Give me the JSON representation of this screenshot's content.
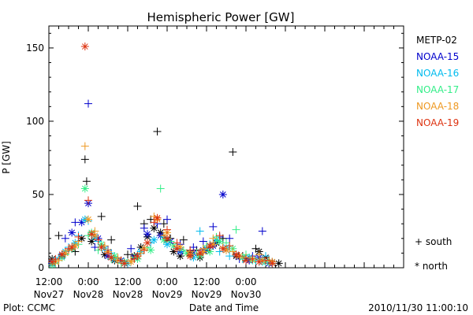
{
  "chart_data": {
    "type": "scatter",
    "title": "Hemispheric Power [GW]",
    "ylabel": "P [GW]",
    "xlabel": "Date and Time",
    "ylim": [
      0,
      165
    ],
    "xlim": [
      0,
      108
    ],
    "yticks": [
      0,
      50,
      100,
      150
    ],
    "xticks": [
      {
        "x": 0,
        "time": "12:00",
        "date": "Nov27"
      },
      {
        "x": 12,
        "time": "0:00",
        "date": "Nov28"
      },
      {
        "x": 24,
        "time": "12:00",
        "date": "Nov28"
      },
      {
        "x": 36,
        "time": "0:00",
        "date": "Nov29"
      },
      {
        "x": 48,
        "time": "12:00",
        "date": "Nov29"
      },
      {
        "x": 60,
        "time": "0:00",
        "date": "Nov30"
      }
    ],
    "grid": false,
    "legend_position": "right",
    "series": [
      {
        "name": "METP-02",
        "color": "#000000",
        "south": [
          [
            3,
            22
          ],
          [
            8,
            11
          ],
          [
            11,
            74
          ],
          [
            11.5,
            59
          ],
          [
            16,
            35
          ],
          [
            19,
            19
          ],
          [
            24,
            9
          ],
          [
            27,
            42
          ],
          [
            29,
            30
          ],
          [
            31,
            33
          ],
          [
            33,
            93
          ],
          [
            35,
            30
          ],
          [
            37,
            20
          ],
          [
            41,
            19
          ],
          [
            45,
            12
          ],
          [
            49,
            14
          ],
          [
            53,
            20
          ],
          [
            56,
            79
          ],
          [
            59,
            8
          ],
          [
            63,
            13
          ],
          [
            67,
            5
          ]
        ],
        "north": [
          [
            1,
            6
          ],
          [
            4,
            9
          ],
          [
            7,
            13
          ],
          [
            10,
            20
          ],
          [
            13,
            18
          ],
          [
            17,
            9
          ],
          [
            20,
            5
          ],
          [
            23,
            3
          ],
          [
            26,
            8
          ],
          [
            28,
            14
          ],
          [
            30,
            21
          ],
          [
            32,
            27
          ],
          [
            34,
            24
          ],
          [
            36,
            19
          ],
          [
            38,
            11
          ],
          [
            40,
            8
          ],
          [
            43,
            10
          ],
          [
            46,
            7
          ],
          [
            48,
            12
          ],
          [
            51,
            17
          ],
          [
            54,
            12
          ],
          [
            57,
            8
          ],
          [
            60,
            6
          ],
          [
            64,
            11
          ],
          [
            66,
            7
          ],
          [
            68,
            4
          ],
          [
            70,
            3
          ]
        ]
      },
      {
        "name": "NOAA-15",
        "color": "#0000cc",
        "south": [
          [
            2,
            4
          ],
          [
            5,
            20
          ],
          [
            8,
            31
          ],
          [
            12,
            112
          ],
          [
            14,
            14
          ],
          [
            18,
            12
          ],
          [
            21,
            6
          ],
          [
            25,
            13
          ],
          [
            29,
            27
          ],
          [
            33,
            30
          ],
          [
            36,
            33
          ],
          [
            40,
            16
          ],
          [
            44,
            14
          ],
          [
            47,
            18
          ],
          [
            50,
            28
          ],
          [
            52,
            21
          ],
          [
            55,
            20
          ],
          [
            58,
            6
          ],
          [
            62,
            8
          ],
          [
            65,
            25
          ]
        ],
        "north": [
          [
            1,
            3
          ],
          [
            4,
            8
          ],
          [
            7,
            24
          ],
          [
            10,
            31
          ],
          [
            12,
            44
          ],
          [
            15,
            20
          ],
          [
            18,
            8
          ],
          [
            22,
            5
          ],
          [
            26,
            7
          ],
          [
            30,
            23
          ],
          [
            34,
            22
          ],
          [
            37,
            18
          ],
          [
            40,
            11
          ],
          [
            44,
            10
          ],
          [
            47,
            12
          ],
          [
            50,
            15
          ],
          [
            53,
            50
          ],
          [
            57,
            9
          ],
          [
            61,
            5
          ],
          [
            64,
            7
          ],
          [
            67,
            3
          ]
        ]
      },
      {
        "name": "NOAA-16",
        "color": "#00bbee",
        "south": [
          [
            3,
            7
          ],
          [
            6,
            14
          ],
          [
            9,
            22
          ],
          [
            12,
            32
          ],
          [
            15,
            18
          ],
          [
            19,
            10
          ],
          [
            23,
            4
          ],
          [
            27,
            9
          ],
          [
            31,
            17
          ],
          [
            35,
            21
          ],
          [
            39,
            14
          ],
          [
            43,
            9
          ],
          [
            46,
            25
          ],
          [
            49,
            16
          ],
          [
            52,
            11
          ],
          [
            55,
            8
          ],
          [
            59,
            6
          ],
          [
            63,
            5
          ],
          [
            66,
            8
          ]
        ],
        "north": [
          [
            2,
            5
          ],
          [
            5,
            11
          ],
          [
            8,
            17
          ],
          [
            11,
            33
          ],
          [
            14,
            21
          ],
          [
            17,
            13
          ],
          [
            20,
            6
          ],
          [
            24,
            3
          ],
          [
            28,
            11
          ],
          [
            32,
            19
          ],
          [
            36,
            16
          ],
          [
            40,
            12
          ],
          [
            44,
            7
          ],
          [
            48,
            13
          ],
          [
            51,
            19
          ],
          [
            54,
            14
          ],
          [
            57,
            9
          ],
          [
            61,
            7
          ],
          [
            65,
            4
          ],
          [
            68,
            3
          ]
        ]
      },
      {
        "name": "NOAA-17",
        "color": "#33ee88",
        "south": [
          [
            2,
            3
          ],
          [
            5,
            9
          ],
          [
            9,
            16
          ],
          [
            12,
            22
          ],
          [
            15,
            12
          ],
          [
            19,
            6
          ],
          [
            22,
            3
          ],
          [
            26,
            7
          ],
          [
            30,
            14
          ],
          [
            34,
            54
          ],
          [
            37,
            18
          ],
          [
            41,
            12
          ],
          [
            45,
            10
          ],
          [
            48,
            15
          ],
          [
            51,
            21
          ],
          [
            54,
            17
          ],
          [
            57,
            26
          ],
          [
            60,
            9
          ],
          [
            64,
            6
          ],
          [
            67,
            4
          ]
        ],
        "north": [
          [
            1,
            2
          ],
          [
            4,
            7
          ],
          [
            7,
            13
          ],
          [
            11,
            54
          ],
          [
            13,
            24
          ],
          [
            16,
            16
          ],
          [
            20,
            8
          ],
          [
            23,
            4
          ],
          [
            27,
            6
          ],
          [
            31,
            12
          ],
          [
            35,
            19
          ],
          [
            38,
            15
          ],
          [
            42,
            10
          ],
          [
            46,
            8
          ],
          [
            49,
            11
          ],
          [
            52,
            18
          ],
          [
            56,
            13
          ],
          [
            59,
            7
          ],
          [
            62,
            5
          ],
          [
            66,
            4
          ]
        ]
      },
      {
        "name": "NOAA-18",
        "color": "#ee9922",
        "south": [
          [
            3,
            5
          ],
          [
            6,
            12
          ],
          [
            9,
            18
          ],
          [
            11,
            83
          ],
          [
            14,
            25
          ],
          [
            17,
            15
          ],
          [
            21,
            7
          ],
          [
            25,
            5
          ],
          [
            28,
            10
          ],
          [
            32,
            35
          ],
          [
            35,
            22
          ],
          [
            39,
            15
          ],
          [
            43,
            11
          ],
          [
            47,
            13
          ],
          [
            50,
            20
          ],
          [
            53,
            14
          ],
          [
            56,
            11
          ],
          [
            60,
            7
          ],
          [
            64,
            9
          ],
          [
            67,
            5
          ]
        ],
        "north": [
          [
            2,
            4
          ],
          [
            5,
            10
          ],
          [
            8,
            15
          ],
          [
            12,
            33
          ],
          [
            14,
            22
          ],
          [
            18,
            11
          ],
          [
            21,
            5
          ],
          [
            25,
            4
          ],
          [
            29,
            13
          ],
          [
            33,
            33
          ],
          [
            36,
            24
          ],
          [
            40,
            14
          ],
          [
            43,
            9
          ],
          [
            47,
            11
          ],
          [
            50,
            16
          ],
          [
            54,
            12
          ],
          [
            58,
            8
          ],
          [
            62,
            6
          ],
          [
            65,
            5
          ],
          [
            68,
            4
          ]
        ]
      },
      {
        "name": "NOAA-19",
        "color": "#dd3311",
        "south": [
          [
            2,
            6
          ],
          [
            6,
            13
          ],
          [
            9,
            21
          ],
          [
            12,
            46
          ],
          [
            15,
            19
          ],
          [
            18,
            10
          ],
          [
            22,
            5
          ],
          [
            26,
            6
          ],
          [
            29,
            12
          ],
          [
            32,
            31
          ],
          [
            36,
            26
          ],
          [
            39,
            17
          ],
          [
            43,
            12
          ],
          [
            46,
            9
          ],
          [
            49,
            14
          ],
          [
            52,
            22
          ],
          [
            55,
            15
          ],
          [
            58,
            8
          ],
          [
            62,
            6
          ],
          [
            66,
            5
          ]
        ],
        "north": [
          [
            1,
            4
          ],
          [
            4,
            9
          ],
          [
            7,
            14
          ],
          [
            11,
            151
          ],
          [
            13,
            23
          ],
          [
            16,
            14
          ],
          [
            19,
            7
          ],
          [
            23,
            3
          ],
          [
            27,
            8
          ],
          [
            30,
            17
          ],
          [
            33,
            34
          ],
          [
            36,
            20
          ],
          [
            39,
            13
          ],
          [
            43,
            8
          ],
          [
            46,
            10
          ],
          [
            49,
            15
          ],
          [
            53,
            13
          ],
          [
            57,
            9
          ],
          [
            60,
            5
          ],
          [
            64,
            4
          ],
          [
            68,
            3
          ]
        ]
      }
    ],
    "symbol_legend": [
      {
        "symbol": "+",
        "label": "south"
      },
      {
        "symbol": "*",
        "label": "north"
      }
    ]
  },
  "footer": {
    "left": "Plot: CCMC",
    "right": "2010/11/30 11:00:10"
  }
}
